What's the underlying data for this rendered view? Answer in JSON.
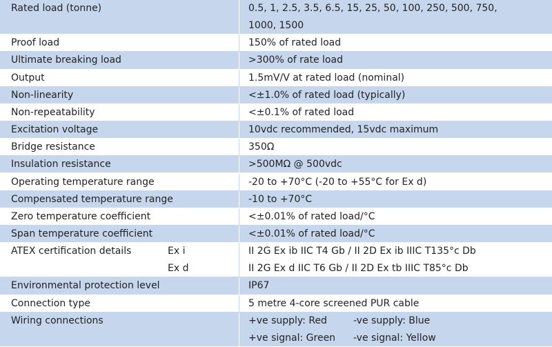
{
  "table": {
    "rows": [
      {
        "label": "Rated load (tonne)",
        "lines": [
          [
            "0.5, 1, 2.5, 3.5, 6.5, 15, 25, 50, 100, 250, 500, 750,"
          ],
          [
            "1000, 1500"
          ]
        ]
      },
      {
        "label": "Proof load",
        "lines": [
          [
            "150% of rated load"
          ]
        ]
      },
      {
        "label": "Ultimate breaking load",
        "lines": [
          [
            ">300% of rate load"
          ]
        ]
      },
      {
        "label": "Output",
        "lines": [
          [
            "1.5mV/V at rated load (nominal)"
          ]
        ]
      },
      {
        "label": "Non-linearity",
        "lines": [
          [
            "<±1.0% of rated load (typically)"
          ]
        ]
      },
      {
        "label": "Non-repeatability",
        "lines": [
          [
            "<±0.1% of rated load"
          ]
        ]
      },
      {
        "label": "Excitation voltage",
        "lines": [
          [
            "10vdc recommended, 15vdc maximum"
          ]
        ]
      },
      {
        "label": "Bridge resistance",
        "lines": [
          [
            "350Ω"
          ]
        ]
      },
      {
        "label": "Insulation resistance",
        "lines": [
          [
            ">500MΩ @ 500vdc"
          ]
        ]
      },
      {
        "label": "Operating temperature range",
        "lines": [
          [
            "-20 to +70°C (-20 to +55°C for Ex d)"
          ]
        ]
      },
      {
        "label": "Compensated temperature range",
        "lines": [
          [
            "-10 to +70°C"
          ]
        ]
      },
      {
        "label": "Zero temperature coefficient",
        "lines": [
          [
            "<±0.01% of rated load/°C"
          ]
        ]
      },
      {
        "label": "Span temperature coefficient",
        "lines": [
          [
            "<±0.01% of rated load/°C"
          ]
        ]
      },
      {
        "label": "ATEX certification details",
        "sub": [
          "Ex i",
          "Ex d"
        ],
        "lines": [
          [
            "II 2G Ex ib IIC T4 Gb  / II 2D Ex ib IIIC T135°c Db"
          ],
          [
            "II 2G Ex d IIC T6 Gb / II 2D Ex tb IIIC T85°c Db"
          ]
        ]
      },
      {
        "label": "Environmental protection level",
        "lines": [
          [
            "IP67"
          ]
        ]
      },
      {
        "label": "Connection type",
        "lines": [
          [
            "5 metre 4-core screened PUR cable"
          ]
        ]
      },
      {
        "label": "Wiring connections",
        "lines": [
          [
            "+ve supply: Red",
            "-ve supply: Blue"
          ],
          [
            "+ve signal: Green",
            "-ve signal: Yellow"
          ]
        ]
      }
    ]
  }
}
